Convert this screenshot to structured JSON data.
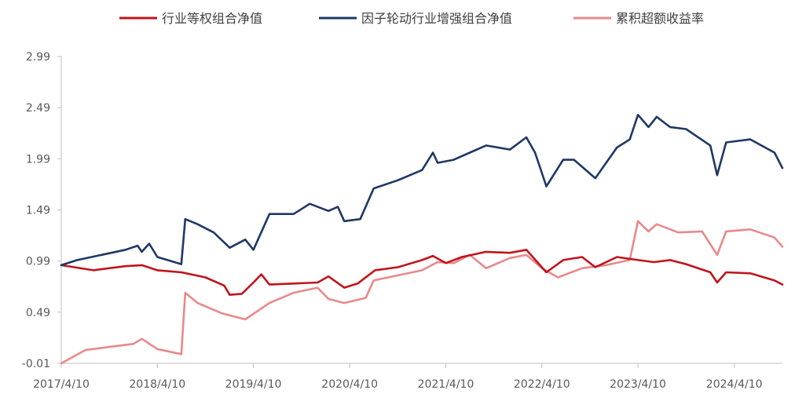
{
  "chart_data": {
    "type": "line",
    "title": "",
    "xlabel": "",
    "ylabel": "",
    "ylim": [
      -0.01,
      2.99
    ],
    "y_ticks": [
      "2.99",
      "2.49",
      "1.99",
      "1.49",
      "0.99",
      "0.49",
      "-0.01"
    ],
    "x_tick_labels": [
      "2017/4/10",
      "2018/4/10",
      "2019/4/10",
      "2020/4/10",
      "2021/4/10",
      "2022/4/10",
      "2023/4/10",
      "2024/4/10"
    ],
    "x_range": [
      "2017/4/10",
      "2024/10/10"
    ],
    "grid": false,
    "legend_position": "top",
    "series": [
      {
        "name": "行业等权组合净值",
        "color": "#c0141c",
        "points": [
          [
            "2017/4/10",
            0.95
          ],
          [
            "2017/8/10",
            0.9
          ],
          [
            "2017/12/10",
            0.94
          ],
          [
            "2018/2/10",
            0.95
          ],
          [
            "2018/4/10",
            0.9
          ],
          [
            "2018/7/10",
            0.88
          ],
          [
            "2018/10/10",
            0.83
          ],
          [
            "2018/12/20",
            0.75
          ],
          [
            "2019/1/10",
            0.66
          ],
          [
            "2019/2/25",
            0.67
          ],
          [
            "2019/4/10",
            0.78
          ],
          [
            "2019/5/10",
            0.86
          ],
          [
            "2019/6/10",
            0.76
          ],
          [
            "2019/9/10",
            0.77
          ],
          [
            "2019/12/10",
            0.78
          ],
          [
            "2020/1/20",
            0.84
          ],
          [
            "2020/3/20",
            0.73
          ],
          [
            "2020/5/10",
            0.77
          ],
          [
            "2020/7/15",
            0.9
          ],
          [
            "2020/10/10",
            0.93
          ],
          [
            "2021/1/10",
            1.0
          ],
          [
            "2021/2/20",
            1.04
          ],
          [
            "2021/4/10",
            0.97
          ],
          [
            "2021/6/10",
            1.03
          ],
          [
            "2021/9/10",
            1.08
          ],
          [
            "2021/12/10",
            1.07
          ],
          [
            "2022/2/10",
            1.1
          ],
          [
            "2022/4/27",
            0.88
          ],
          [
            "2022/6/30",
            1.0
          ],
          [
            "2022/9/10",
            1.03
          ],
          [
            "2022/10/30",
            0.93
          ],
          [
            "2023/1/20",
            1.03
          ],
          [
            "2023/4/10",
            1.0
          ],
          [
            "2023/6/10",
            0.98
          ],
          [
            "2023/8/10",
            1.0
          ],
          [
            "2023/10/10",
            0.96
          ],
          [
            "2024/1/10",
            0.88
          ],
          [
            "2024/2/5",
            0.78
          ],
          [
            "2024/3/10",
            0.88
          ],
          [
            "2024/6/10",
            0.87
          ],
          [
            "2024/9/10",
            0.8
          ],
          [
            "2024/10/10",
            0.76
          ]
        ]
      },
      {
        "name": "因子轮动行业增强组合净值",
        "color": "#1f3864",
        "points": [
          [
            "2017/4/10",
            0.95
          ],
          [
            "2017/6/10",
            1.0
          ],
          [
            "2017/9/10",
            1.05
          ],
          [
            "2017/12/10",
            1.1
          ],
          [
            "2018/1/25",
            1.14
          ],
          [
            "2018/2/10",
            1.08
          ],
          [
            "2018/3/10",
            1.16
          ],
          [
            "2018/4/10",
            1.03
          ],
          [
            "2018/7/10",
            0.96
          ],
          [
            "2018/7/25",
            1.4
          ],
          [
            "2018/9/10",
            1.35
          ],
          [
            "2018/11/10",
            1.27
          ],
          [
            "2019/1/10",
            1.12
          ],
          [
            "2019/3/10",
            1.2
          ],
          [
            "2019/4/10",
            1.1
          ],
          [
            "2019/6/10",
            1.45
          ],
          [
            "2019/9/10",
            1.45
          ],
          [
            "2019/11/10",
            1.55
          ],
          [
            "2020/1/20",
            1.48
          ],
          [
            "2020/2/25",
            1.52
          ],
          [
            "2020/3/20",
            1.38
          ],
          [
            "2020/5/20",
            1.4
          ],
          [
            "2020/7/10",
            1.7
          ],
          [
            "2020/10/10",
            1.78
          ],
          [
            "2021/1/10",
            1.88
          ],
          [
            "2021/2/20",
            2.05
          ],
          [
            "2021/3/10",
            1.95
          ],
          [
            "2021/5/10",
            1.98
          ],
          [
            "2021/7/10",
            2.05
          ],
          [
            "2021/9/10",
            2.12
          ],
          [
            "2021/12/10",
            2.08
          ],
          [
            "2022/2/10",
            2.2
          ],
          [
            "2022/3/15",
            2.05
          ],
          [
            "2022/4/27",
            1.72
          ],
          [
            "2022/6/30",
            1.98
          ],
          [
            "2022/8/10",
            1.98
          ],
          [
            "2022/10/30",
            1.8
          ],
          [
            "2023/1/20",
            2.1
          ],
          [
            "2023/3/10",
            2.18
          ],
          [
            "2023/4/10",
            2.42
          ],
          [
            "2023/5/20",
            2.3
          ],
          [
            "2023/6/20",
            2.4
          ],
          [
            "2023/8/10",
            2.3
          ],
          [
            "2023/10/10",
            2.28
          ],
          [
            "2024/1/10",
            2.12
          ],
          [
            "2024/2/5",
            1.83
          ],
          [
            "2024/3/10",
            2.15
          ],
          [
            "2024/6/10",
            2.18
          ],
          [
            "2024/9/10",
            2.05
          ],
          [
            "2024/10/10",
            1.9
          ]
        ]
      },
      {
        "name": "累积超额收益率",
        "color": "#e8898a",
        "points": [
          [
            "2017/4/10",
            -0.01
          ],
          [
            "2017/7/10",
            0.12
          ],
          [
            "2017/10/10",
            0.15
          ],
          [
            "2018/1/10",
            0.18
          ],
          [
            "2018/2/10",
            0.23
          ],
          [
            "2018/4/10",
            0.13
          ],
          [
            "2018/7/10",
            0.08
          ],
          [
            "2018/7/25",
            0.68
          ],
          [
            "2018/9/10",
            0.58
          ],
          [
            "2018/12/10",
            0.48
          ],
          [
            "2019/3/10",
            0.42
          ],
          [
            "2019/6/10",
            0.58
          ],
          [
            "2019/9/10",
            0.68
          ],
          [
            "2019/12/10",
            0.73
          ],
          [
            "2020/1/20",
            0.62
          ],
          [
            "2020/3/20",
            0.58
          ],
          [
            "2020/6/10",
            0.63
          ],
          [
            "2020/7/10",
            0.8
          ],
          [
            "2020/10/10",
            0.85
          ],
          [
            "2021/1/10",
            0.9
          ],
          [
            "2021/3/10",
            0.98
          ],
          [
            "2021/5/10",
            0.97
          ],
          [
            "2021/7/10",
            1.05
          ],
          [
            "2021/9/10",
            0.92
          ],
          [
            "2021/12/10",
            1.02
          ],
          [
            "2022/2/10",
            1.05
          ],
          [
            "2022/4/10",
            0.92
          ],
          [
            "2022/6/10",
            0.83
          ],
          [
            "2022/9/10",
            0.92
          ],
          [
            "2022/12/10",
            0.95
          ],
          [
            "2023/3/10",
            1.0
          ],
          [
            "2023/4/10",
            1.38
          ],
          [
            "2023/5/20",
            1.28
          ],
          [
            "2023/6/20",
            1.35
          ],
          [
            "2023/9/10",
            1.27
          ],
          [
            "2023/12/10",
            1.28
          ],
          [
            "2024/2/5",
            1.05
          ],
          [
            "2024/3/10",
            1.28
          ],
          [
            "2024/6/10",
            1.3
          ],
          [
            "2024/9/10",
            1.22
          ],
          [
            "2024/10/10",
            1.13
          ]
        ]
      }
    ]
  }
}
